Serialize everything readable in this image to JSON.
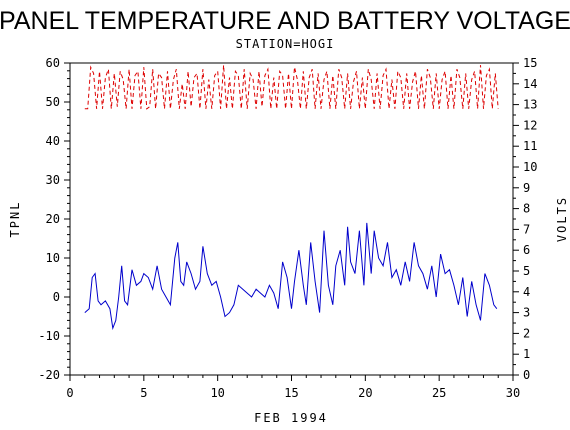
{
  "chart_data": {
    "type": "line",
    "title": "PANEL TEMPERATURE AND BATTERY VOLTAGE",
    "subtitle": "STATION=HOGI",
    "xlabel": "FEB 1994",
    "ylabel_left": "TPNL",
    "ylabel_right": "VOLTS",
    "xlim": [
      0,
      30
    ],
    "ylim_left": [
      -20,
      60
    ],
    "ylim_right": [
      0,
      15
    ],
    "x_ticks": [
      0,
      5,
      10,
      15,
      20,
      25,
      30
    ],
    "y_left_ticks": [
      -20,
      -10,
      0,
      10,
      20,
      30,
      40,
      50,
      60
    ],
    "y_right_ticks": [
      0,
      1,
      2,
      3,
      4,
      5,
      6,
      7,
      8,
      9,
      10,
      11,
      12,
      13,
      14,
      15
    ],
    "grid": false,
    "series": [
      {
        "axis": "left",
        "color": "#0000cc",
        "style": "solid",
        "x": [
          1.0,
          1.3,
          1.5,
          1.7,
          1.9,
          2.1,
          2.4,
          2.7,
          2.9,
          3.1,
          3.3,
          3.5,
          3.7,
          3.9,
          4.2,
          4.5,
          4.8,
          5.0,
          5.3,
          5.6,
          5.9,
          6.2,
          6.5,
          6.8,
          7.1,
          7.3,
          7.5,
          7.7,
          7.9,
          8.2,
          8.5,
          8.8,
          9.0,
          9.3,
          9.6,
          9.9,
          10.2,
          10.5,
          10.8,
          11.1,
          11.4,
          11.7,
          12.0,
          12.3,
          12.6,
          12.9,
          13.2,
          13.5,
          13.8,
          14.1,
          14.4,
          14.7,
          15.0,
          15.2,
          15.5,
          15.8,
          16.0,
          16.3,
          16.6,
          16.9,
          17.2,
          17.5,
          17.8,
          18.0,
          18.3,
          18.6,
          18.8,
          19.0,
          19.3,
          19.6,
          19.9,
          20.1,
          20.4,
          20.6,
          20.9,
          21.2,
          21.5,
          21.8,
          22.1,
          22.4,
          22.7,
          23.0,
          23.3,
          23.6,
          23.9,
          24.2,
          24.5,
          24.8,
          25.1,
          25.4,
          25.7,
          26.0,
          26.3,
          26.6,
          26.9,
          27.2,
          27.5,
          27.8,
          28.1,
          28.4,
          28.7,
          28.9
        ],
        "y": [
          -4,
          -3,
          5,
          6,
          -1,
          -2,
          -1,
          -3,
          -8,
          -6,
          0,
          8,
          -1,
          -2,
          7,
          3,
          4,
          6,
          5,
          2,
          8,
          2,
          0,
          -2,
          10,
          14,
          4,
          3,
          9,
          6,
          2,
          4,
          13,
          6,
          3,
          4,
          0,
          -5,
          -4,
          -2,
          3,
          2,
          1,
          0,
          2,
          1,
          0,
          3,
          1,
          -3,
          9,
          5,
          -3,
          4,
          12,
          3,
          -2,
          14,
          4,
          -4,
          17,
          3,
          -2,
          8,
          12,
          3,
          18,
          9,
          6,
          17,
          3,
          19,
          6,
          17,
          10,
          8,
          14,
          5,
          7,
          3,
          9,
          4,
          14,
          8,
          6,
          2,
          8,
          0,
          11,
          6,
          7,
          3,
          -2,
          5,
          -5,
          4,
          -2,
          -6,
          6,
          3,
          -2,
          -3
        ]
      },
      {
        "axis": "right",
        "color": "#dd0000",
        "style": "dashed",
        "x": [
          1.0,
          1.2,
          1.4,
          1.6,
          1.8,
          2.0,
          2.2,
          2.4,
          2.6,
          2.8,
          3.0,
          3.2,
          3.4,
          3.6,
          3.8,
          4.0,
          4.2,
          4.4,
          4.6,
          4.8,
          5.0,
          5.2,
          5.4,
          5.6,
          5.8,
          6.0,
          6.2,
          6.4,
          6.6,
          6.8,
          7.0,
          7.2,
          7.4,
          7.6,
          7.8,
          8.0,
          8.2,
          8.4,
          8.6,
          8.8,
          9.0,
          9.2,
          9.4,
          9.6,
          9.8,
          10.0,
          10.2,
          10.4,
          10.6,
          10.8,
          11.0,
          11.2,
          11.4,
          11.6,
          11.8,
          12.0,
          12.2,
          12.4,
          12.6,
          12.8,
          13.0,
          13.2,
          13.4,
          13.6,
          13.8,
          14.0,
          14.2,
          14.4,
          14.6,
          14.8,
          15.0,
          15.2,
          15.4,
          15.6,
          15.8,
          16.0,
          16.2,
          16.4,
          16.6,
          16.8,
          17.0,
          17.2,
          17.4,
          17.6,
          17.8,
          18.0,
          18.2,
          18.4,
          18.6,
          18.8,
          19.0,
          19.2,
          19.4,
          19.6,
          19.8,
          20.0,
          20.2,
          20.4,
          20.6,
          20.8,
          21.0,
          21.2,
          21.4,
          21.6,
          21.8,
          22.0,
          22.2,
          22.4,
          22.6,
          22.8,
          23.0,
          23.2,
          23.4,
          23.6,
          23.8,
          24.0,
          24.2,
          24.4,
          24.6,
          24.8,
          25.0,
          25.2,
          25.4,
          25.6,
          25.8,
          26.0,
          26.2,
          26.4,
          26.6,
          26.8,
          27.0,
          27.2,
          27.4,
          27.6,
          27.8,
          28.0,
          28.2,
          28.4,
          28.6,
          28.8,
          29.0
        ],
        "y": [
          12.8,
          12.8,
          14.8,
          14.5,
          12.8,
          14.6,
          12.8,
          14.3,
          14.7,
          12.8,
          14.5,
          12.9,
          14.6,
          14.2,
          12.8,
          14.7,
          12.8,
          14.4,
          14.6,
          12.8,
          14.8,
          12.8,
          12.9,
          14.7,
          12.8,
          14.5,
          14.3,
          12.8,
          14.6,
          12.8,
          14.2,
          14.7,
          12.8,
          14.0,
          12.8,
          14.6,
          12.9,
          14.3,
          14.5,
          12.8,
          14.7,
          12.8,
          14.2,
          12.8,
          14.4,
          14.6,
          12.8,
          14.9,
          12.8,
          14.3,
          12.8,
          14.6,
          14.4,
          12.8,
          14.7,
          12.8,
          14.5,
          14.2,
          12.8,
          14.6,
          12.9,
          14.4,
          14.7,
          12.8,
          14.3,
          12.8,
          14.6,
          14.4,
          12.8,
          14.5,
          12.8,
          14.8,
          14.2,
          12.8,
          14.6,
          12.8,
          14.3,
          14.7,
          12.8,
          14.5,
          12.8,
          14.2,
          14.6,
          12.8,
          14.4,
          12.8,
          14.7,
          14.3,
          12.8,
          14.5,
          12.8,
          14.1,
          14.6,
          12.8,
          14.3,
          12.8,
          14.7,
          14.2,
          12.8,
          14.5,
          12.8,
          14.4,
          14.7,
          12.8,
          14.2,
          12.8,
          14.6,
          14.3,
          12.8,
          14.5,
          12.8,
          14.1,
          14.6,
          12.8,
          14.4,
          12.8,
          14.7,
          14.3,
          12.8,
          14.5,
          12.8,
          14.2,
          14.6,
          12.8,
          14.4,
          12.8,
          14.7,
          14.3,
          12.8,
          14.5,
          12.8,
          14.2,
          14.6,
          12.8,
          14.9,
          12.8,
          14.4,
          14.7,
          12.8,
          14.5,
          12.8
        ]
      }
    ]
  }
}
